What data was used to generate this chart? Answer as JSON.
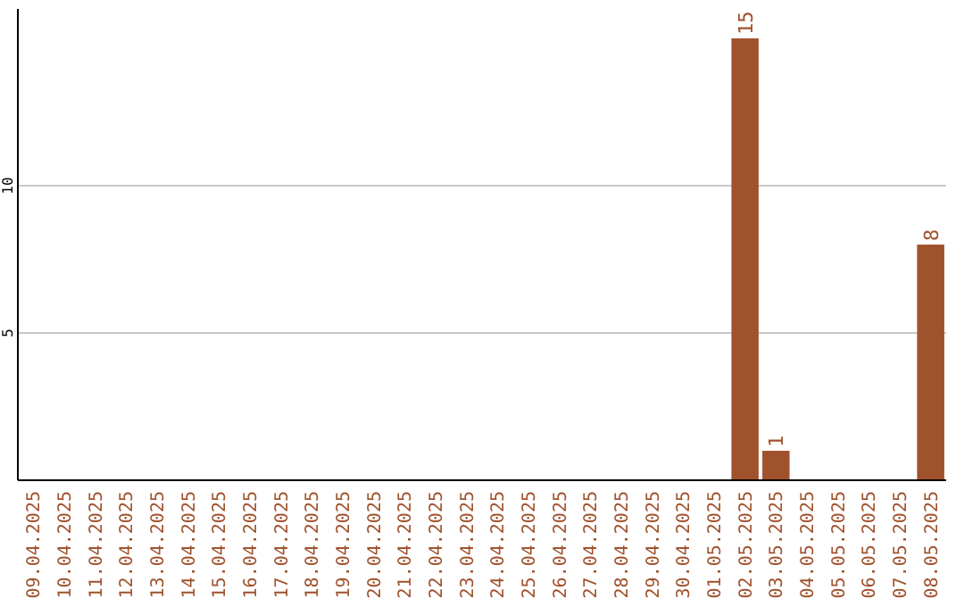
{
  "chart_data": {
    "type": "bar",
    "categories": [
      "09.04.2025",
      "10.04.2025",
      "11.04.2025",
      "12.04.2025",
      "13.04.2025",
      "14.04.2025",
      "15.04.2025",
      "16.04.2025",
      "17.04.2025",
      "18.04.2025",
      "19.04.2025",
      "20.04.2025",
      "21.04.2025",
      "22.04.2025",
      "23.04.2025",
      "24.04.2025",
      "25.04.2025",
      "26.04.2025",
      "27.04.2025",
      "28.04.2025",
      "29.04.2025",
      "30.04.2025",
      "01.05.2025",
      "02.05.2025",
      "03.05.2025",
      "04.05.2025",
      "05.05.2025",
      "06.05.2025",
      "07.05.2025",
      "08.05.2025"
    ],
    "values": [
      0,
      0,
      0,
      0,
      0,
      0,
      0,
      0,
      0,
      0,
      0,
      0,
      0,
      0,
      0,
      0,
      0,
      0,
      0,
      0,
      0,
      0,
      0,
      15,
      1,
      0,
      0,
      0,
      0,
      8
    ],
    "value_labels": [
      null,
      null,
      null,
      null,
      null,
      null,
      null,
      null,
      null,
      null,
      null,
      null,
      null,
      null,
      null,
      null,
      null,
      null,
      null,
      null,
      null,
      null,
      null,
      "15",
      "1",
      null,
      null,
      null,
      null,
      "8"
    ],
    "color": "#a0522d",
    "ylim": [
      0,
      16
    ],
    "yticks": [
      5,
      10
    ],
    "grid": "y"
  }
}
